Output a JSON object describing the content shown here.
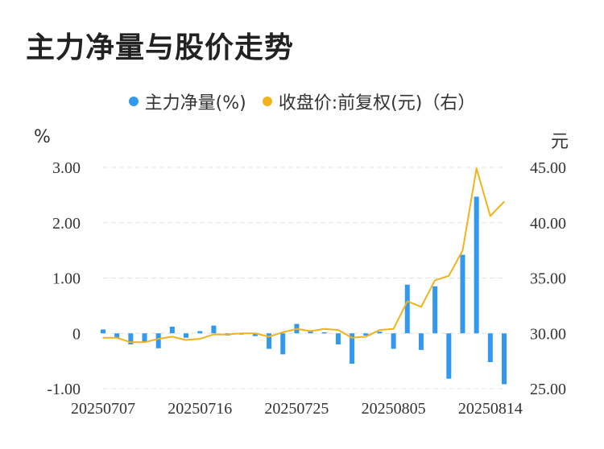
{
  "title": "主力净量与股价走势",
  "legend": [
    {
      "label": "主力净量(%)",
      "color": "#3399ee"
    },
    {
      "label": "收盘价:前复权(元)（右）",
      "color": "#f2b21c"
    }
  ],
  "units": {
    "left": "%",
    "right": "元"
  },
  "chart_data": {
    "type": "bar+line",
    "categories": [
      "20250707",
      "20250708",
      "20250709",
      "20250710",
      "20250711",
      "20250714",
      "20250715",
      "20250716",
      "20250717",
      "20250718",
      "20250721",
      "20250722",
      "20250723",
      "20250724",
      "20250725",
      "20250728",
      "20250729",
      "20250730",
      "20250731",
      "20250801",
      "20250804",
      "20250805",
      "20250806",
      "20250807",
      "20250808",
      "20250811",
      "20250812",
      "20250813",
      "20250814",
      "20250815"
    ],
    "x_tick_labels": [
      "20250707",
      "20250716",
      "20250725",
      "20250805",
      "20250814"
    ],
    "x_tick_indices": [
      0,
      7,
      14,
      21,
      28
    ],
    "series": [
      {
        "name": "主力净量(%)",
        "type": "bar",
        "axis": "left",
        "color": "#3399ee",
        "values": [
          0.07,
          -0.08,
          -0.2,
          -0.15,
          -0.27,
          0.12,
          -0.08,
          0.04,
          0.14,
          -0.04,
          0.0,
          -0.05,
          -0.28,
          -0.38,
          0.17,
          0.04,
          0.02,
          -0.2,
          -0.55,
          -0.04,
          0.03,
          -0.28,
          0.88,
          -0.3,
          0.85,
          -0.82,
          1.42,
          2.47,
          -0.52,
          -0.92
        ]
      },
      {
        "name": "收盘价:前复权(元)（右）",
        "type": "line",
        "axis": "right",
        "color": "#f2b21c",
        "values": [
          29.6,
          29.6,
          29.2,
          29.2,
          29.5,
          29.7,
          29.4,
          29.5,
          29.9,
          29.9,
          30.0,
          30.0,
          29.7,
          30.1,
          30.4,
          30.2,
          30.4,
          30.3,
          29.6,
          29.7,
          30.3,
          30.4,
          32.9,
          32.4,
          34.8,
          35.2,
          37.5,
          44.9,
          40.6,
          41.9
        ]
      }
    ],
    "y_left": {
      "ticks": [
        "3.00",
        "2.00",
        "1.00",
        "0",
        "-1.00"
      ],
      "tick_values": [
        3,
        2,
        1,
        0,
        -1
      ],
      "ylim": [
        -1,
        3
      ]
    },
    "y_right": {
      "ticks": [
        "45.00",
        "40.00",
        "35.00",
        "30.00",
        "25.00"
      ],
      "tick_values": [
        45,
        40,
        35,
        30,
        25
      ],
      "ylim": [
        25,
        45
      ]
    },
    "grid": true,
    "legend_position": "top-center"
  }
}
